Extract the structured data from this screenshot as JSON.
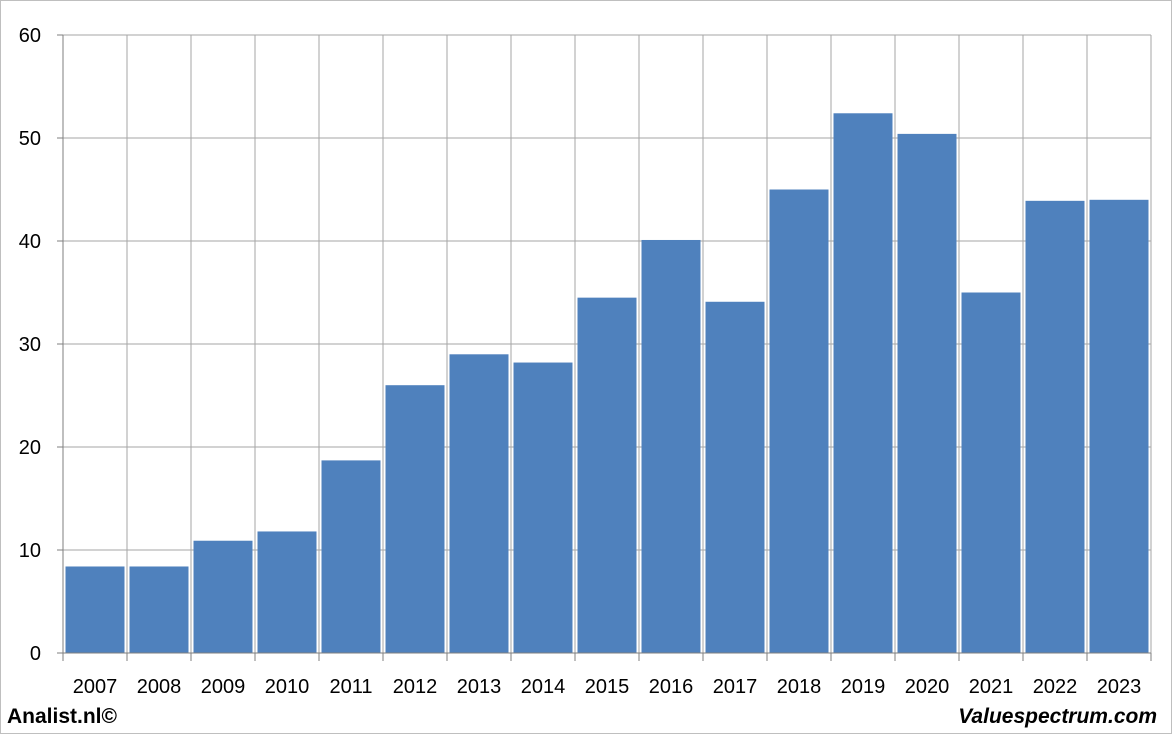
{
  "footer": {
    "left_text": "Analist.nl©",
    "right_text": "Valuespectrum.com"
  },
  "chart_data": {
    "type": "bar",
    "categories": [
      "2007",
      "2008",
      "2009",
      "2010",
      "2011",
      "2012",
      "2013",
      "2014",
      "2015",
      "2016",
      "2017",
      "2018",
      "2019",
      "2020",
      "2021",
      "2022",
      "2023"
    ],
    "values": [
      8.4,
      8.4,
      10.9,
      11.8,
      18.7,
      26.0,
      29.0,
      28.2,
      34.5,
      40.1,
      34.1,
      45.0,
      52.4,
      50.4,
      35.0,
      43.9,
      44.0
    ],
    "ylim": [
      0,
      60
    ],
    "yticks": [
      0,
      10,
      20,
      30,
      40,
      50,
      60
    ],
    "grid": true,
    "colors": {
      "bar": "#4F81BD",
      "grid": "#a6a6a6",
      "axis": "#7f7f7f"
    }
  }
}
